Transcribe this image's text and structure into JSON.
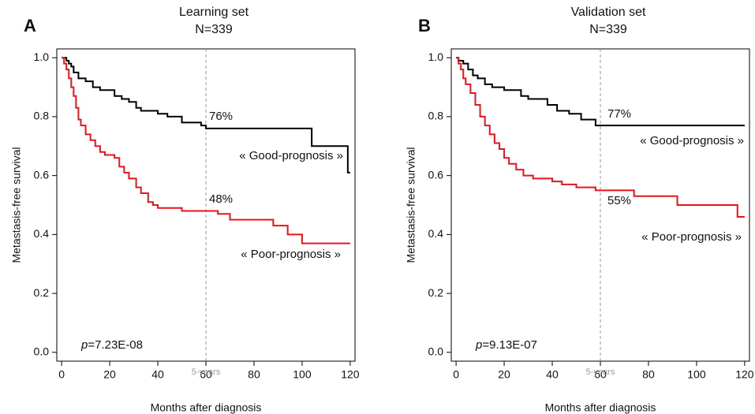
{
  "chart_data": [
    {
      "type": "step",
      "panel": "A",
      "title": "Learning set",
      "subtitle": "N=339",
      "x_label": "Months after diagnosis",
      "y_label": "Metastasis-free survival",
      "xlim": [
        -2,
        122
      ],
      "ylim": [
        -0.03,
        1.03
      ],
      "xticks": [
        0,
        20,
        40,
        60,
        80,
        100,
        120
      ],
      "yticks": [
        {
          "value": 0,
          "label": "0.0"
        },
        0.2,
        0.4,
        0.6,
        0.8,
        {
          "value": 1,
          "label": "1.0"
        }
      ],
      "vline": 60,
      "vline_label": "5-years",
      "series": [
        {
          "name": "« Good-prognosis »",
          "color": "#000000",
          "end_label": "76%",
          "x": [
            0,
            2,
            3,
            4,
            5,
            7,
            10,
            13,
            16,
            22,
            25,
            28,
            31,
            33,
            40,
            44,
            50,
            58,
            60,
            104,
            119,
            120
          ],
          "values": [
            1,
            0.99,
            0.98,
            0.97,
            0.95,
            0.93,
            0.92,
            0.9,
            0.89,
            0.87,
            0.86,
            0.85,
            0.83,
            0.82,
            0.81,
            0.8,
            0.78,
            0.77,
            0.76,
            0.7,
            0.61,
            0.61
          ]
        },
        {
          "name": "« Poor-prognosis »",
          "color": "#e8141b",
          "end_label": "48%",
          "x": [
            0,
            1,
            2,
            3,
            4,
            5,
            6,
            7,
            8,
            10,
            12,
            14,
            16,
            18,
            22,
            24,
            26,
            28,
            31,
            33,
            36,
            38,
            40,
            50,
            65,
            70,
            88,
            94,
            100,
            120
          ],
          "values": [
            1,
            0.98,
            0.96,
            0.93,
            0.9,
            0.87,
            0.83,
            0.79,
            0.77,
            0.74,
            0.72,
            0.7,
            0.68,
            0.67,
            0.66,
            0.63,
            0.61,
            0.59,
            0.56,
            0.54,
            0.51,
            0.5,
            0.49,
            0.48,
            0.47,
            0.45,
            0.43,
            0.4,
            0.37,
            0.37
          ]
        }
      ],
      "p_value": "p=7.23E-08"
    },
    {
      "type": "step",
      "panel": "B",
      "title": "Validation set",
      "subtitle": "N=339",
      "x_label": "Months after diagnosis",
      "y_label": "Metastasis-free survival",
      "xlim": [
        -2,
        122
      ],
      "ylim": [
        -0.03,
        1.03
      ],
      "xticks": [
        0,
        20,
        40,
        60,
        80,
        100,
        120
      ],
      "yticks": [
        {
          "value": 0,
          "label": "0.0"
        },
        0.2,
        0.4,
        0.6,
        0.8,
        {
          "value": 1,
          "label": "1.0"
        }
      ],
      "vline": 60,
      "vline_label": "5-years",
      "series": [
        {
          "name": "« Good-prognosis »",
          "color": "#000000",
          "end_label": "77%",
          "x": [
            0,
            1,
            3,
            5,
            7,
            9,
            12,
            15,
            20,
            27,
            30,
            38,
            42,
            47,
            52,
            58,
            120
          ],
          "values": [
            1,
            0.99,
            0.98,
            0.96,
            0.94,
            0.93,
            0.91,
            0.9,
            0.89,
            0.87,
            0.86,
            0.84,
            0.82,
            0.81,
            0.79,
            0.77,
            0.77
          ]
        },
        {
          "name": "« Poor-prognosis »",
          "color": "#e8141b",
          "end_label": "55%",
          "x": [
            0,
            1,
            2,
            3,
            4,
            6,
            8,
            10,
            12,
            14,
            16,
            18,
            20,
            22,
            25,
            28,
            32,
            40,
            44,
            50,
            58,
            74,
            92,
            117,
            120
          ],
          "values": [
            1,
            0.98,
            0.96,
            0.93,
            0.91,
            0.88,
            0.84,
            0.8,
            0.77,
            0.74,
            0.71,
            0.69,
            0.66,
            0.64,
            0.62,
            0.6,
            0.59,
            0.58,
            0.57,
            0.56,
            0.55,
            0.53,
            0.5,
            0.46,
            0.46
          ]
        }
      ],
      "p_value": "p=9.13E-07"
    }
  ]
}
